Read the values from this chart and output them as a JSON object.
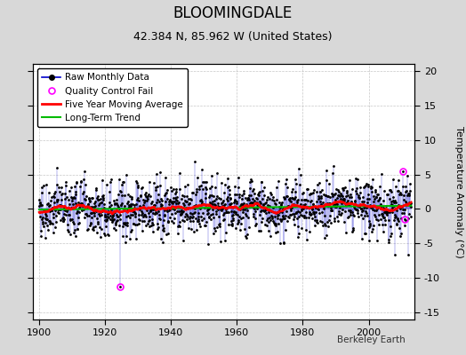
{
  "title": "BLOOMINGDALE",
  "subtitle": "42.384 N, 85.962 W (United States)",
  "ylabel": "Temperature Anomaly (°C)",
  "attribution": "Berkeley Earth",
  "year_start": 1900,
  "year_end": 2012,
  "ylim": [
    -16,
    21
  ],
  "yticks": [
    -15,
    -10,
    -5,
    0,
    5,
    10,
    15,
    20
  ],
  "xticks": [
    1900,
    1920,
    1940,
    1960,
    1980,
    2000
  ],
  "bg_color": "#d8d8d8",
  "plot_bg_color": "#ffffff",
  "raw_line_color": "#0000cc",
  "raw_marker_color": "#000000",
  "qc_fail_color": "#ff00ff",
  "moving_avg_color": "#ff0000",
  "trend_color": "#00bb00",
  "grid_color": "#b0b0b0",
  "qc_fail_points": [
    [
      1924.5,
      -11.3
    ],
    [
      2010.5,
      5.5
    ],
    [
      2010.9,
      -1.5
    ]
  ]
}
